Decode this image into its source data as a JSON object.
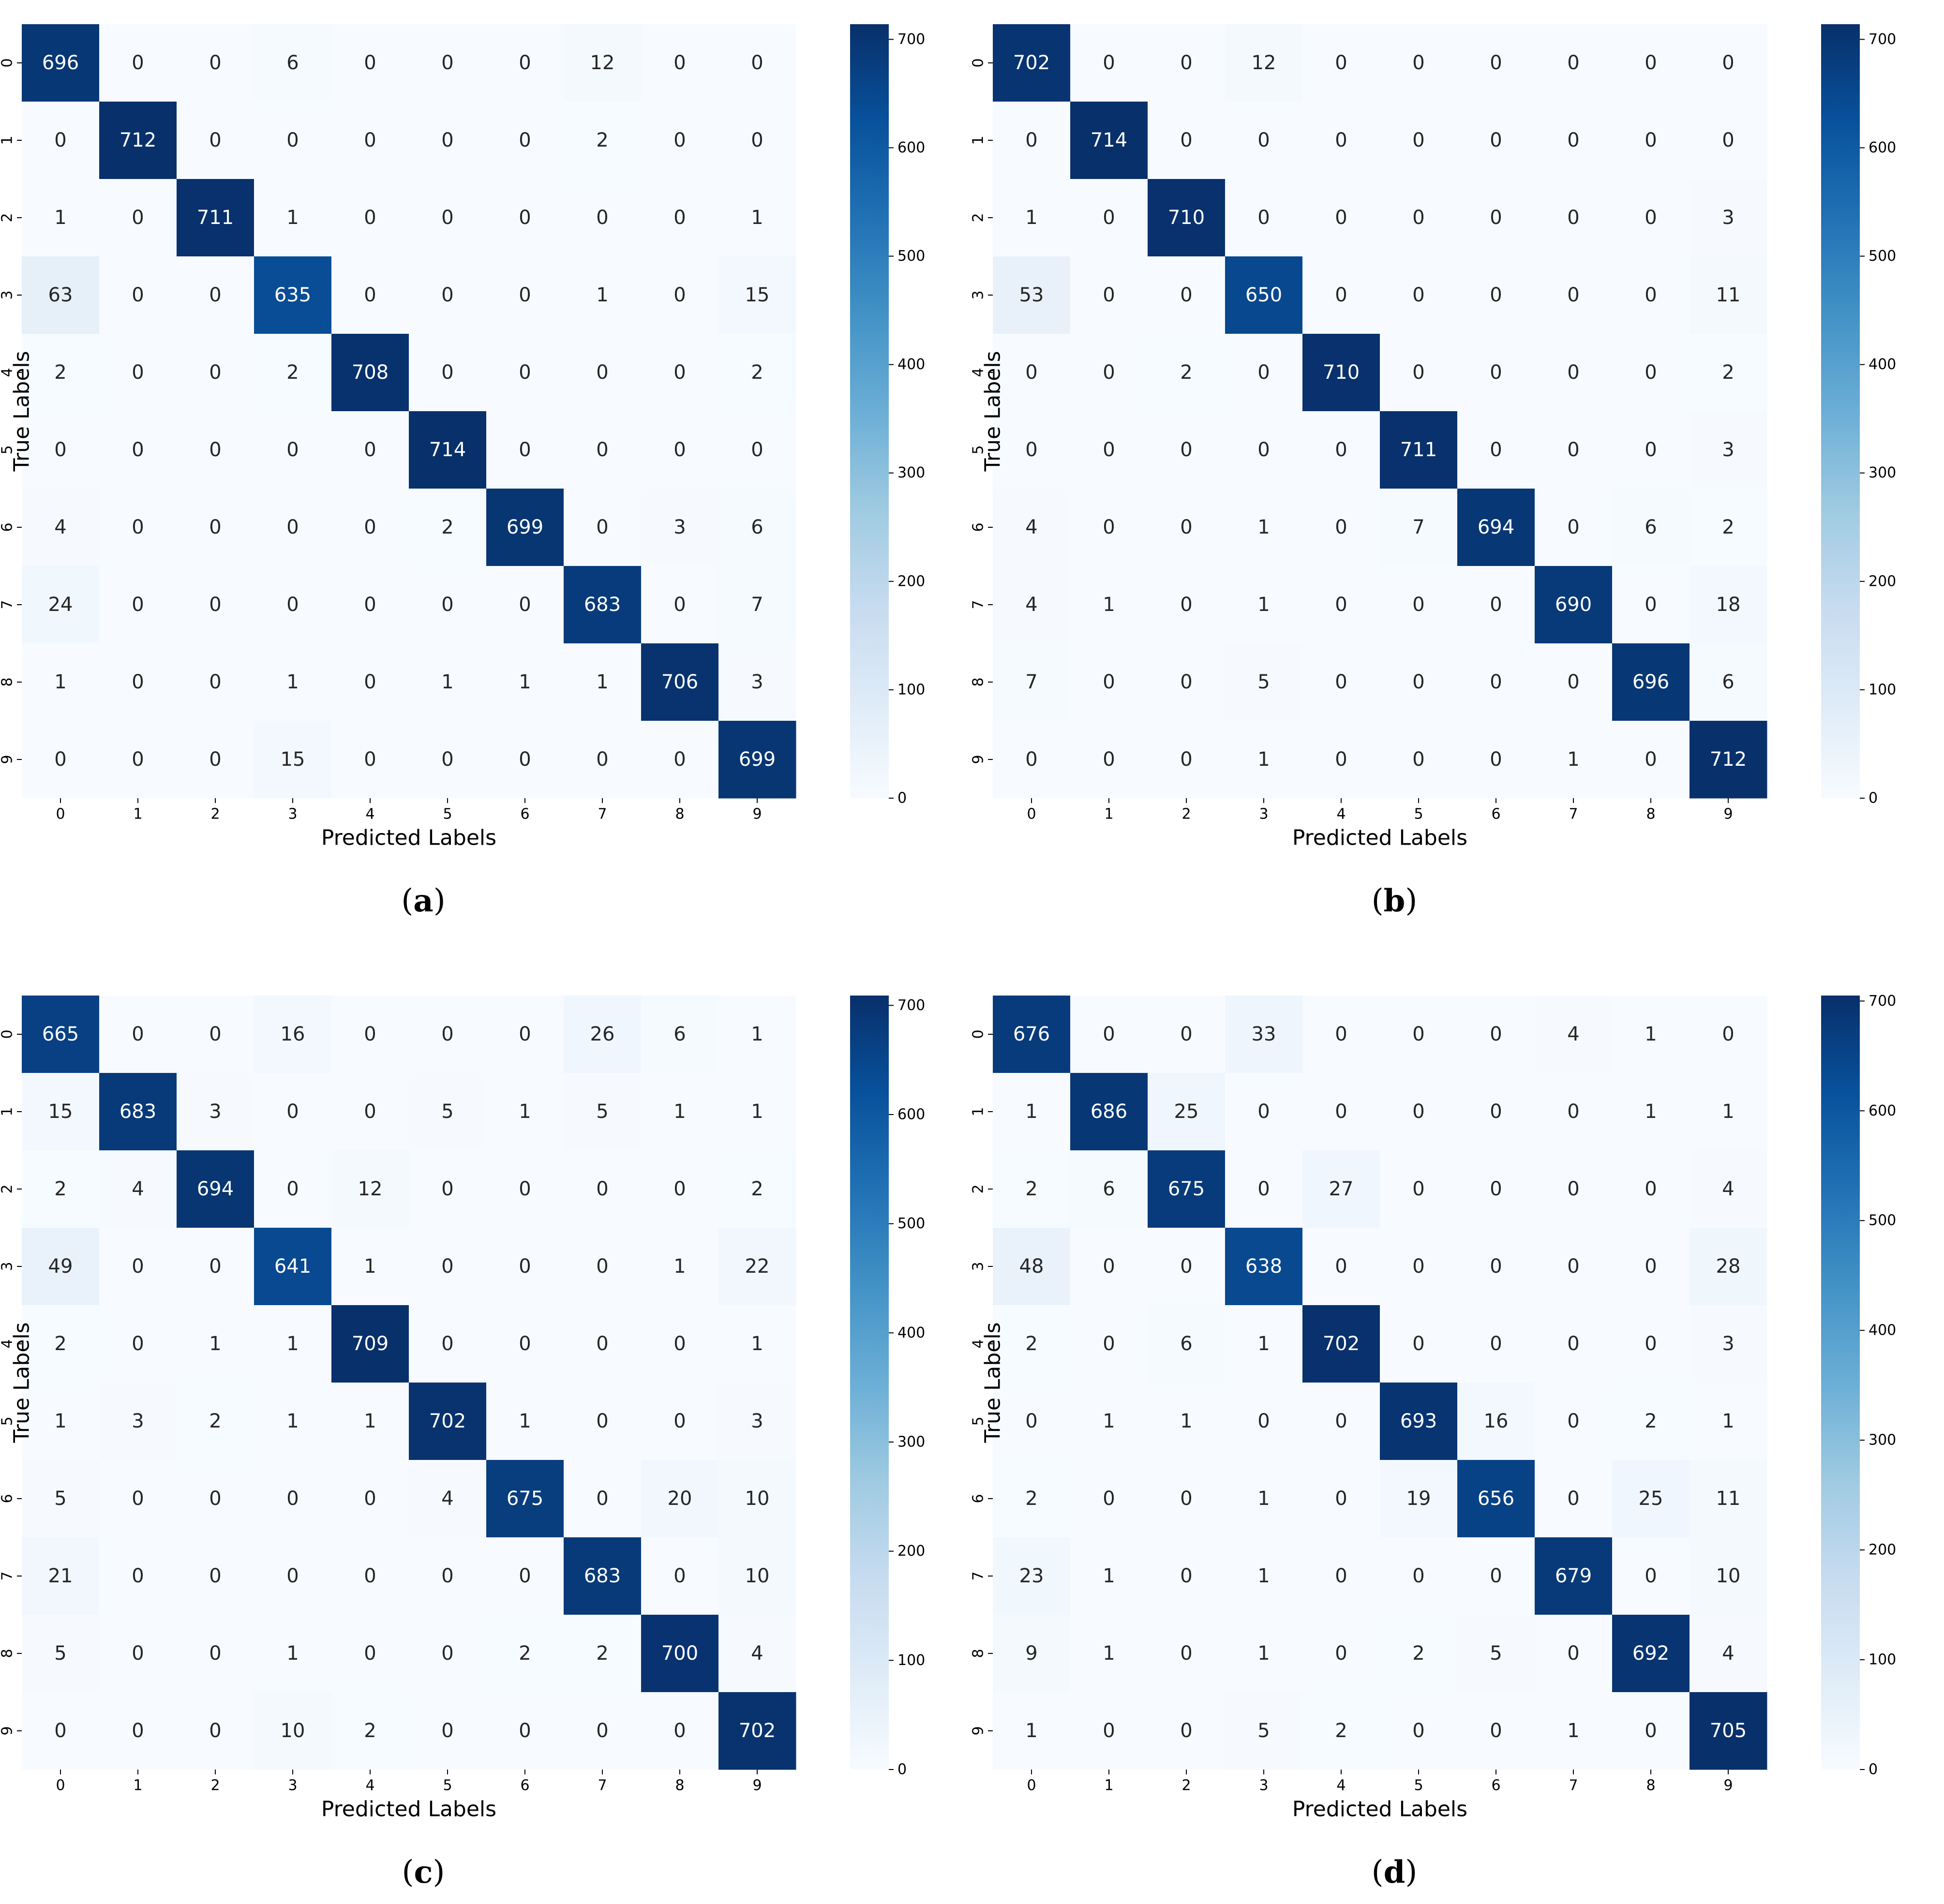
{
  "chart_data": [
    {
      "type": "heatmap",
      "panel_label": "(a)",
      "x_categories": [
        "0",
        "1",
        "2",
        "3",
        "4",
        "5",
        "6",
        "7",
        "8",
        "9"
      ],
      "y_categories": [
        "0",
        "1",
        "2",
        "3",
        "4",
        "5",
        "6",
        "7",
        "8",
        "9"
      ],
      "xlabel": "Predicted Labels",
      "ylabel": "True Labels",
      "colormap": "Blues",
      "colorbar_range": [
        0,
        714
      ],
      "colorbar_ticks": [
        0,
        100,
        200,
        300,
        400,
        500,
        600,
        700
      ],
      "matrix": [
        [
          696,
          0,
          0,
          6,
          0,
          0,
          0,
          12,
          0,
          0
        ],
        [
          0,
          712,
          0,
          0,
          0,
          0,
          0,
          2,
          0,
          0
        ],
        [
          1,
          0,
          711,
          1,
          0,
          0,
          0,
          0,
          0,
          1
        ],
        [
          63,
          0,
          0,
          635,
          0,
          0,
          0,
          1,
          0,
          15
        ],
        [
          2,
          0,
          0,
          2,
          708,
          0,
          0,
          0,
          0,
          2
        ],
        [
          0,
          0,
          0,
          0,
          0,
          714,
          0,
          0,
          0,
          0
        ],
        [
          4,
          0,
          0,
          0,
          0,
          2,
          699,
          0,
          3,
          6
        ],
        [
          24,
          0,
          0,
          0,
          0,
          0,
          0,
          683,
          0,
          7
        ],
        [
          1,
          0,
          0,
          1,
          0,
          1,
          1,
          1,
          706,
          3
        ],
        [
          0,
          0,
          0,
          15,
          0,
          0,
          0,
          0,
          0,
          699
        ]
      ]
    },
    {
      "type": "heatmap",
      "panel_label": "(b)",
      "x_categories": [
        "0",
        "1",
        "2",
        "3",
        "4",
        "5",
        "6",
        "7",
        "8",
        "9"
      ],
      "y_categories": [
        "0",
        "1",
        "2",
        "3",
        "4",
        "5",
        "6",
        "7",
        "8",
        "9"
      ],
      "xlabel": "Predicted Labels",
      "ylabel": "True Labels",
      "colormap": "Blues",
      "colorbar_range": [
        0,
        714
      ],
      "colorbar_ticks": [
        0,
        100,
        200,
        300,
        400,
        500,
        600,
        700
      ],
      "matrix": [
        [
          702,
          0,
          0,
          12,
          0,
          0,
          0,
          0,
          0,
          0
        ],
        [
          0,
          714,
          0,
          0,
          0,
          0,
          0,
          0,
          0,
          0
        ],
        [
          1,
          0,
          710,
          0,
          0,
          0,
          0,
          0,
          0,
          3
        ],
        [
          53,
          0,
          0,
          650,
          0,
          0,
          0,
          0,
          0,
          11
        ],
        [
          0,
          0,
          2,
          0,
          710,
          0,
          0,
          0,
          0,
          2
        ],
        [
          0,
          0,
          0,
          0,
          0,
          711,
          0,
          0,
          0,
          3
        ],
        [
          4,
          0,
          0,
          1,
          0,
          7,
          694,
          0,
          6,
          2
        ],
        [
          4,
          1,
          0,
          1,
          0,
          0,
          0,
          690,
          0,
          18
        ],
        [
          7,
          0,
          0,
          5,
          0,
          0,
          0,
          0,
          696,
          6
        ],
        [
          0,
          0,
          0,
          1,
          0,
          0,
          0,
          1,
          0,
          712
        ]
      ]
    },
    {
      "type": "heatmap",
      "panel_label": "(c)",
      "x_categories": [
        "0",
        "1",
        "2",
        "3",
        "4",
        "5",
        "6",
        "7",
        "8",
        "9"
      ],
      "y_categories": [
        "0",
        "1",
        "2",
        "3",
        "4",
        "5",
        "6",
        "7",
        "8",
        "9"
      ],
      "xlabel": "Predicted Labels",
      "ylabel": "True Labels",
      "colormap": "Blues",
      "colorbar_range": [
        0,
        709
      ],
      "colorbar_ticks": [
        0,
        100,
        200,
        300,
        400,
        500,
        600,
        700
      ],
      "matrix": [
        [
          665,
          0,
          0,
          16,
          0,
          0,
          0,
          26,
          6,
          1
        ],
        [
          15,
          683,
          3,
          0,
          0,
          5,
          1,
          5,
          1,
          1
        ],
        [
          2,
          4,
          694,
          0,
          12,
          0,
          0,
          0,
          0,
          2
        ],
        [
          49,
          0,
          0,
          641,
          1,
          0,
          0,
          0,
          1,
          22
        ],
        [
          2,
          0,
          1,
          1,
          709,
          0,
          0,
          0,
          0,
          1
        ],
        [
          1,
          3,
          2,
          1,
          1,
          702,
          1,
          0,
          0,
          3
        ],
        [
          5,
          0,
          0,
          0,
          0,
          4,
          675,
          0,
          20,
          10
        ],
        [
          21,
          0,
          0,
          0,
          0,
          0,
          0,
          683,
          0,
          10
        ],
        [
          5,
          0,
          0,
          1,
          0,
          0,
          2,
          2,
          700,
          4
        ],
        [
          0,
          0,
          0,
          10,
          2,
          0,
          0,
          0,
          0,
          702
        ]
      ]
    },
    {
      "type": "heatmap",
      "panel_label": "(d)",
      "x_categories": [
        "0",
        "1",
        "2",
        "3",
        "4",
        "5",
        "6",
        "7",
        "8",
        "9"
      ],
      "y_categories": [
        "0",
        "1",
        "2",
        "3",
        "4",
        "5",
        "6",
        "7",
        "8",
        "9"
      ],
      "xlabel": "Predicted Labels",
      "ylabel": "True Labels",
      "colormap": "Blues",
      "colorbar_range": [
        0,
        705
      ],
      "colorbar_ticks": [
        0,
        100,
        200,
        300,
        400,
        500,
        600,
        700
      ],
      "matrix": [
        [
          676,
          0,
          0,
          33,
          0,
          0,
          0,
          4,
          1,
          0
        ],
        [
          1,
          686,
          25,
          0,
          0,
          0,
          0,
          0,
          1,
          1
        ],
        [
          2,
          6,
          675,
          0,
          27,
          0,
          0,
          0,
          0,
          4
        ],
        [
          48,
          0,
          0,
          638,
          0,
          0,
          0,
          0,
          0,
          28
        ],
        [
          2,
          0,
          6,
          1,
          702,
          0,
          0,
          0,
          0,
          3
        ],
        [
          0,
          1,
          1,
          0,
          0,
          693,
          16,
          0,
          2,
          1
        ],
        [
          2,
          0,
          0,
          1,
          0,
          19,
          656,
          0,
          25,
          11
        ],
        [
          23,
          1,
          0,
          1,
          0,
          0,
          0,
          679,
          0,
          10
        ],
        [
          9,
          1,
          0,
          1,
          0,
          2,
          5,
          0,
          692,
          4
        ],
        [
          1,
          0,
          0,
          5,
          2,
          0,
          0,
          1,
          0,
          705
        ]
      ]
    }
  ]
}
